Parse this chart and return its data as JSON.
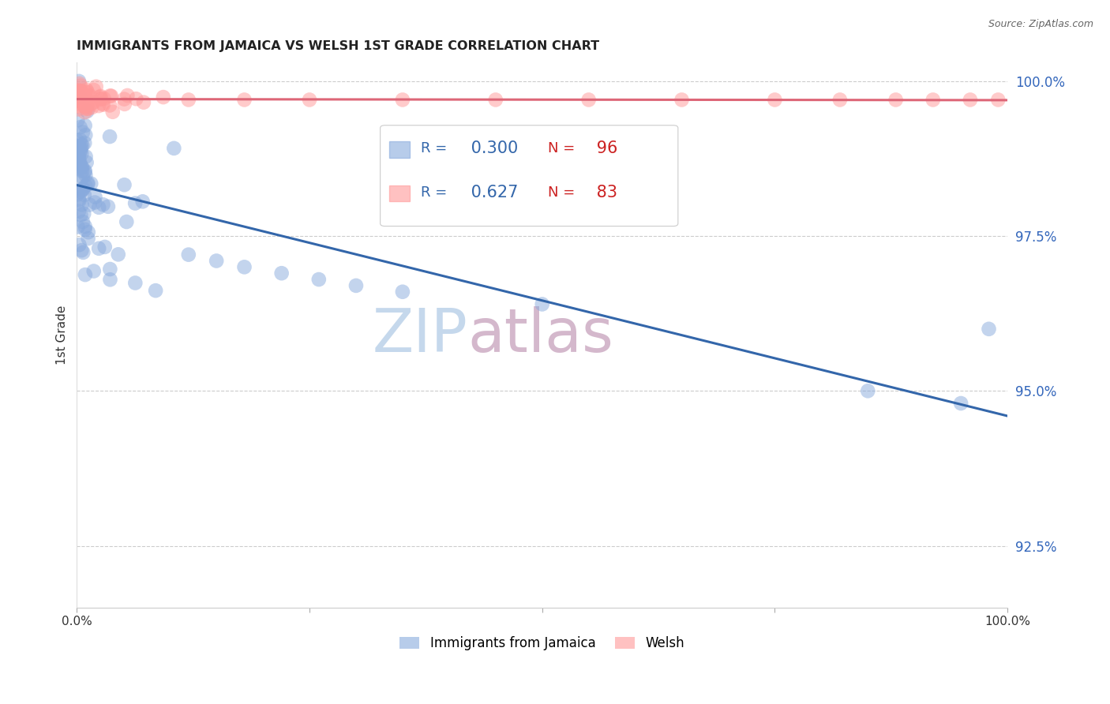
{
  "title": "IMMIGRANTS FROM JAMAICA VS WELSH 1ST GRADE CORRELATION CHART",
  "source": "Source: ZipAtlas.com",
  "ylabel": "1st Grade",
  "ytick_labels": [
    "92.5%",
    "95.0%",
    "97.5%",
    "100.0%"
  ],
  "ytick_values": [
    0.925,
    0.95,
    0.975,
    1.0
  ],
  "legend_blue_label": "Immigrants from Jamaica",
  "legend_pink_label": "Welsh",
  "r_blue": 0.3,
  "n_blue": 96,
  "r_pink": 0.627,
  "n_pink": 83,
  "blue_color": "#88AADD",
  "pink_color": "#FF9999",
  "line_blue": "#3366AA",
  "line_pink": "#DD6677",
  "watermark_zip_color": "#C5D8EC",
  "watermark_atlas_color": "#D4B8CC",
  "ymin": 0.915,
  "ymax": 1.003,
  "xmin": 0.0,
  "xmax": 1.0
}
